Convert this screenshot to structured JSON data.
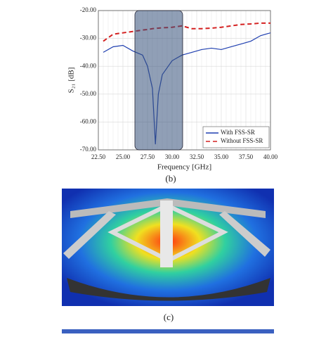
{
  "chart_data": {
    "type": "line",
    "xlabel": "Frequency [GHz]",
    "ylabel": "S₂₁ [dB]",
    "x": [
      23,
      24,
      25,
      26,
      27,
      27.5,
      28,
      28.3,
      28.6,
      29,
      30,
      31,
      32,
      33,
      34,
      35,
      36,
      37,
      38,
      39,
      40
    ],
    "series": [
      {
        "name": "With FSS-SR",
        "color": "#1f3fb0",
        "dash": "none",
        "values": [
          -35,
          -33,
          -32.5,
          -34.5,
          -36,
          -40,
          -48,
          -68,
          -50,
          -43,
          -38,
          -36,
          -35,
          -34,
          -33.5,
          -34,
          -33,
          -32,
          -31,
          -29,
          -28
        ]
      },
      {
        "name": "Without FSS-SR",
        "color": "#d42020",
        "dash": "6,4",
        "values": [
          -31,
          -28.5,
          -28,
          -27.5,
          -27,
          -26.8,
          -26.5,
          -26.4,
          -26.3,
          -26.2,
          -26,
          -25.5,
          -26.5,
          -26.5,
          -26.3,
          -26,
          -25.5,
          -25,
          -24.8,
          -24.5,
          -24.5
        ]
      }
    ],
    "xlim": [
      22.5,
      40
    ],
    "ylim": [
      -70,
      -20
    ],
    "xticks": [
      {
        "value": 22.5,
        "label": "22.50"
      },
      {
        "value": 25,
        "label": "25.00"
      },
      {
        "value": 27.5,
        "label": "27.50"
      },
      {
        "value": 30,
        "label": "30.00"
      },
      {
        "value": 32.5,
        "label": "32.50"
      },
      {
        "value": 35,
        "label": "35.00"
      },
      {
        "value": 37.5,
        "label": "37.50"
      },
      {
        "value": 40,
        "label": "40.00"
      }
    ],
    "yticks": [
      {
        "value": -20,
        "label": "-20.00"
      },
      {
        "value": -30,
        "label": "-30.00"
      },
      {
        "value": -40,
        "label": "-40.00"
      },
      {
        "value": -50,
        "label": "-50.00"
      },
      {
        "value": -60,
        "label": "-60.00"
      },
      {
        "value": -70,
        "label": "-70.00"
      }
    ],
    "grid": true,
    "legend": "lower right"
  },
  "captions": [
    "(b)",
    "(c)"
  ]
}
